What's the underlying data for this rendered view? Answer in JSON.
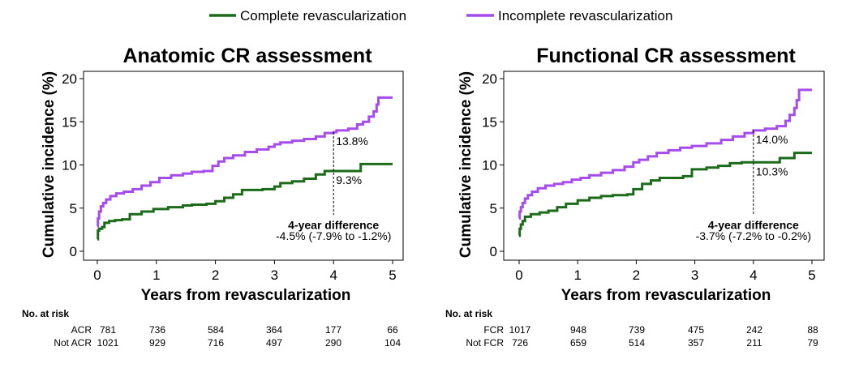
{
  "legend": {
    "complete_label": "Complete revascularization",
    "incomplete_label": "Incomplete revascularization"
  },
  "colors": {
    "complete": "#1b6b1b",
    "incomplete": "#a64ced"
  },
  "risk_table": {
    "header": "No. at risk"
  },
  "chart_data": [
    {
      "type": "line",
      "title": "Anatomic CR assessment",
      "xlabel": "Years from revascularization",
      "ylabel": "Cumulative incidence (%)",
      "xlim": [
        0,
        5
      ],
      "ylim": [
        0,
        20
      ],
      "xticks": [
        0,
        1,
        2,
        3,
        4,
        5
      ],
      "yticks": [
        0,
        5,
        10,
        15,
        20
      ],
      "series": [
        {
          "name": "Complete revascularization",
          "points": [
            [
              0,
              1.4
            ],
            [
              0.01,
              2.4
            ],
            [
              0.03,
              2.6
            ],
            [
              0.08,
              2.8
            ],
            [
              0.12,
              3.3
            ],
            [
              0.2,
              3.5
            ],
            [
              0.3,
              3.6
            ],
            [
              0.42,
              3.7
            ],
            [
              0.55,
              4.3
            ],
            [
              0.75,
              4.6
            ],
            [
              0.95,
              4.9
            ],
            [
              1.2,
              5.1
            ],
            [
              1.45,
              5.3
            ],
            [
              1.6,
              5.4
            ],
            [
              1.85,
              5.5
            ],
            [
              2.0,
              5.8
            ],
            [
              2.15,
              6.2
            ],
            [
              2.3,
              6.6
            ],
            [
              2.45,
              7.1
            ],
            [
              2.6,
              7.1
            ],
            [
              2.8,
              7.2
            ],
            [
              3.0,
              7.5
            ],
            [
              3.1,
              7.9
            ],
            [
              3.3,
              8.1
            ],
            [
              3.5,
              8.4
            ],
            [
              3.7,
              8.9
            ],
            [
              3.85,
              9.3
            ],
            [
              4.0,
              9.3
            ],
            [
              4.45,
              9.3
            ],
            [
              4.46,
              10.1
            ],
            [
              5.0,
              10.1
            ]
          ]
        },
        {
          "name": "Incomplete revascularization",
          "points": [
            [
              0,
              2.9
            ],
            [
              0.01,
              3.8
            ],
            [
              0.03,
              4.6
            ],
            [
              0.06,
              5.2
            ],
            [
              0.1,
              5.6
            ],
            [
              0.15,
              6.0
            ],
            [
              0.22,
              6.4
            ],
            [
              0.32,
              6.7
            ],
            [
              0.45,
              6.9
            ],
            [
              0.6,
              7.2
            ],
            [
              0.75,
              7.6
            ],
            [
              0.9,
              8.0
            ],
            [
              1.05,
              8.5
            ],
            [
              1.25,
              8.8
            ],
            [
              1.45,
              9.0
            ],
            [
              1.6,
              9.2
            ],
            [
              1.8,
              9.3
            ],
            [
              1.95,
              9.9
            ],
            [
              2.05,
              10.4
            ],
            [
              2.15,
              10.8
            ],
            [
              2.3,
              11.1
            ],
            [
              2.5,
              11.5
            ],
            [
              2.7,
              11.8
            ],
            [
              2.9,
              12.1
            ],
            [
              3.0,
              12.4
            ],
            [
              3.1,
              12.6
            ],
            [
              3.3,
              12.8
            ],
            [
              3.5,
              13.0
            ],
            [
              3.7,
              13.3
            ],
            [
              3.85,
              13.7
            ],
            [
              4.0,
              13.8
            ],
            [
              4.05,
              14.0
            ],
            [
              4.25,
              14.2
            ],
            [
              4.4,
              14.7
            ],
            [
              4.5,
              15.0
            ],
            [
              4.6,
              15.6
            ],
            [
              4.68,
              16.2
            ],
            [
              4.73,
              17.0
            ],
            [
              4.76,
              17.8
            ],
            [
              5.0,
              17.8
            ]
          ]
        }
      ],
      "annotations": {
        "incomplete_at_4": "13.8%",
        "complete_at_4": "9.3%",
        "difference_title": "4-year difference",
        "difference_value": "-4.5% (-7.9% to -1.2%)"
      },
      "risk_rows": [
        {
          "label": "ACR",
          "values": [
            "781",
            "736",
            "584",
            "364",
            "177",
            "66"
          ]
        },
        {
          "label": "Not ACR",
          "values": [
            "1021",
            "929",
            "716",
            "497",
            "290",
            "104"
          ]
        }
      ]
    },
    {
      "type": "line",
      "title": "Functional CR assessment",
      "xlabel": "Years from revascularization",
      "ylabel": "Cumulative incidence (%)",
      "xlim": [
        0,
        5
      ],
      "ylim": [
        0,
        20
      ],
      "xticks": [
        0,
        1,
        2,
        3,
        4,
        5
      ],
      "yticks": [
        0,
        5,
        10,
        15,
        20
      ],
      "series": [
        {
          "name": "Complete revascularization",
          "points": [
            [
              0,
              1.8
            ],
            [
              0.01,
              2.6
            ],
            [
              0.03,
              3.1
            ],
            [
              0.06,
              3.5
            ],
            [
              0.1,
              4.0
            ],
            [
              0.2,
              4.3
            ],
            [
              0.35,
              4.5
            ],
            [
              0.5,
              4.7
            ],
            [
              0.65,
              5.1
            ],
            [
              0.8,
              5.5
            ],
            [
              1.0,
              5.9
            ],
            [
              1.2,
              6.2
            ],
            [
              1.4,
              6.4
            ],
            [
              1.6,
              6.5
            ],
            [
              1.85,
              6.6
            ],
            [
              1.95,
              7.2
            ],
            [
              2.1,
              7.8
            ],
            [
              2.25,
              8.2
            ],
            [
              2.4,
              8.5
            ],
            [
              2.6,
              8.5
            ],
            [
              2.8,
              8.7
            ],
            [
              2.95,
              9.5
            ],
            [
              3.2,
              9.7
            ],
            [
              3.4,
              9.9
            ],
            [
              3.6,
              10.2
            ],
            [
              3.8,
              10.3
            ],
            [
              4.0,
              10.3
            ],
            [
              4.3,
              10.3
            ],
            [
              4.45,
              10.8
            ],
            [
              4.7,
              11.4
            ],
            [
              5.0,
              11.4
            ]
          ]
        },
        {
          "name": "Incomplete revascularization",
          "points": [
            [
              0,
              3.8
            ],
            [
              0.01,
              4.6
            ],
            [
              0.03,
              5.1
            ],
            [
              0.06,
              5.6
            ],
            [
              0.1,
              6.1
            ],
            [
              0.15,
              6.5
            ],
            [
              0.22,
              6.9
            ],
            [
              0.32,
              7.3
            ],
            [
              0.45,
              7.6
            ],
            [
              0.6,
              7.8
            ],
            [
              0.75,
              8.0
            ],
            [
              0.9,
              8.3
            ],
            [
              1.05,
              8.5
            ],
            [
              1.2,
              8.8
            ],
            [
              1.4,
              9.1
            ],
            [
              1.6,
              9.4
            ],
            [
              1.8,
              9.8
            ],
            [
              1.95,
              10.3
            ],
            [
              2.05,
              10.6
            ],
            [
              2.2,
              11.0
            ],
            [
              2.35,
              11.4
            ],
            [
              2.55,
              11.7
            ],
            [
              2.75,
              12.0
            ],
            [
              2.95,
              12.2
            ],
            [
              3.2,
              12.5
            ],
            [
              3.45,
              12.9
            ],
            [
              3.65,
              13.3
            ],
            [
              3.85,
              13.7
            ],
            [
              4.0,
              14.0
            ],
            [
              4.2,
              14.2
            ],
            [
              4.4,
              14.5
            ],
            [
              4.55,
              15.1
            ],
            [
              4.62,
              15.8
            ],
            [
              4.7,
              16.6
            ],
            [
              4.74,
              17.5
            ],
            [
              4.78,
              18.7
            ],
            [
              5.0,
              18.7
            ]
          ]
        }
      ],
      "annotations": {
        "incomplete_at_4": "14.0%",
        "complete_at_4": "10.3%",
        "difference_title": "4-year difference",
        "difference_value": "-3.7% (-7.2% to -0.2%)"
      },
      "risk_rows": [
        {
          "label": "FCR",
          "values": [
            "1017",
            "948",
            "739",
            "475",
            "242",
            "88"
          ]
        },
        {
          "label": "Not FCR",
          "values": [
            "726",
            "659",
            "514",
            "357",
            "211",
            "79"
          ]
        }
      ]
    }
  ]
}
